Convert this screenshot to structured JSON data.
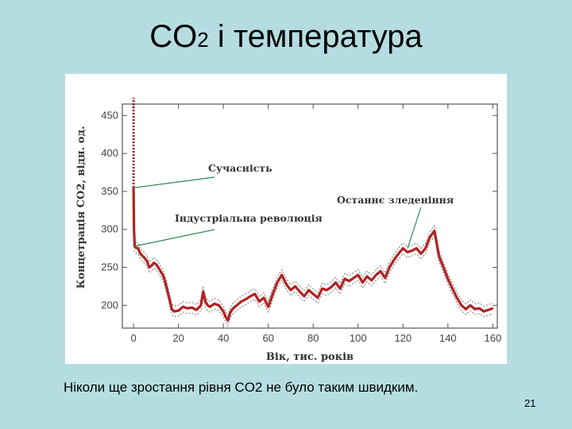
{
  "slide": {
    "title_co": "CO",
    "title_sub": "2",
    "title_rest": " і температура",
    "caption": "Ніколи ще зростання рівня CO2 не було таким швидким.",
    "page_number": "21"
  },
  "chart_data": {
    "type": "line",
    "title": "",
    "xlabel": "Вік, тис. років",
    "ylabel": "Концетрація CO2, відн. од.",
    "xlim": [
      -5,
      162
    ],
    "ylim": [
      170,
      465
    ],
    "x_ticks": [
      0,
      20,
      40,
      60,
      80,
      100,
      120,
      140,
      160
    ],
    "y_ticks": [
      200,
      250,
      300,
      350,
      400,
      450
    ],
    "grid": false,
    "annotations": [
      {
        "text": "Сучасність",
        "x": 0,
        "y": 355
      },
      {
        "text": "Індустріальна революція",
        "x": 0,
        "y": 278
      },
      {
        "text": "Останнє зледеніння",
        "x": 122,
        "y": 275
      }
    ],
    "series": [
      {
        "name": "",
        "color": "#b22222",
        "x": [
          0,
          0.2,
          0.5,
          1,
          2,
          3,
          4,
          5,
          6,
          7,
          8,
          9,
          10,
          11,
          12,
          13,
          14,
          15,
          16,
          17,
          18,
          20,
          22,
          24,
          26,
          28,
          30,
          31,
          32,
          33,
          34,
          36,
          38,
          40,
          41,
          42,
          43,
          44,
          46,
          48,
          50,
          52,
          54,
          56,
          58,
          60,
          62,
          64,
          66,
          68,
          70,
          72,
          74,
          76,
          78,
          80,
          82,
          84,
          86,
          88,
          90,
          92,
          94,
          96,
          98,
          100,
          102,
          104,
          106,
          108,
          110,
          112,
          114,
          116,
          118,
          120,
          122,
          124,
          126,
          128,
          130,
          132,
          134,
          136,
          138,
          140,
          142,
          144,
          146,
          148,
          150,
          152,
          154,
          156,
          158,
          160
        ],
        "values": [
          355,
          300,
          278,
          276,
          275,
          268,
          265,
          262,
          258,
          250,
          252,
          256,
          254,
          250,
          245,
          240,
          232,
          220,
          208,
          195,
          192,
          193,
          198,
          196,
          197,
          194,
          200,
          218,
          205,
          200,
          198,
          202,
          200,
          192,
          185,
          180,
          190,
          195,
          200,
          205,
          208,
          212,
          215,
          205,
          210,
          198,
          215,
          230,
          240,
          228,
          220,
          225,
          218,
          212,
          220,
          215,
          210,
          222,
          220,
          224,
          230,
          222,
          235,
          232,
          236,
          240,
          230,
          238,
          233,
          240,
          245,
          236,
          250,
          260,
          268,
          275,
          270,
          272,
          275,
          268,
          275,
          290,
          298,
          265,
          250,
          235,
          222,
          210,
          200,
          195,
          200,
          195,
          196,
          192,
          194,
          196
        ]
      }
    ]
  }
}
